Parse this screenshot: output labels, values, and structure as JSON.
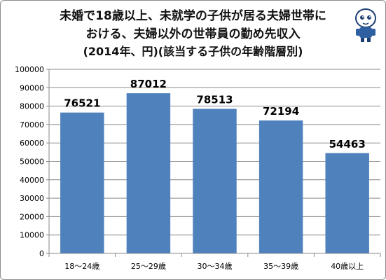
{
  "chart_data": {
    "type": "bar",
    "title_lines": [
      "未婚で18歳以上、未就学の子供が居る夫婦世帯に",
      "おける、夫婦以外の世帯員の勤め先収入",
      "(2014年、円)(該当する子供の年齢階層別)"
    ],
    "categories": [
      "18～24歳",
      "25～29歳",
      "30～34歳",
      "35～39歳",
      "40歳以上"
    ],
    "values": [
      76521,
      87012,
      78513,
      72194,
      54463
    ],
    "data_labels": [
      "76521",
      "87012",
      "78513",
      "72194",
      "54463"
    ],
    "ylim": [
      0,
      100000
    ],
    "yticks": [
      0,
      10000,
      20000,
      30000,
      40000,
      50000,
      60000,
      70000,
      80000,
      90000,
      100000
    ],
    "ytick_labels": [
      "0",
      "10000",
      "20000",
      "30000",
      "40000",
      "50000",
      "60000",
      "70000",
      "80000",
      "90000",
      "100000"
    ],
    "grid": true,
    "bar_color": "#4f81bd",
    "legend": "none"
  },
  "mascot_icon": "mascot-character-icon"
}
